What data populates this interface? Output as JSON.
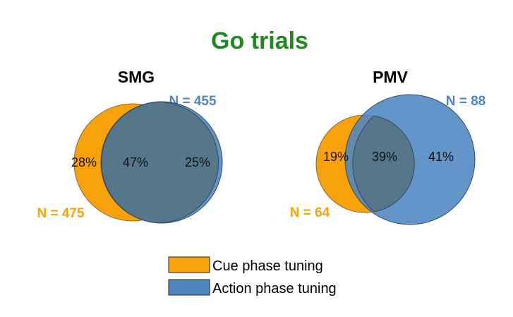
{
  "title": "Go trials",
  "colors": {
    "title": "#1e8a1e",
    "cue": "#f7a20c",
    "action": "#4f86c0",
    "overlap": "#56778a"
  },
  "panels": [
    {
      "name": "SMG",
      "n_action": "N = 455",
      "n_cue": "N = 475",
      "cue_only": "28%",
      "overlap": "47%",
      "action_only": "25%"
    },
    {
      "name": "PMV",
      "n_action": "N = 88",
      "n_cue": "N = 64",
      "cue_only": "19%",
      "overlap": "39%",
      "action_only": "41%"
    }
  ],
  "legend": {
    "cue": "Cue phase tuning",
    "action": "Action phase tuning"
  }
}
